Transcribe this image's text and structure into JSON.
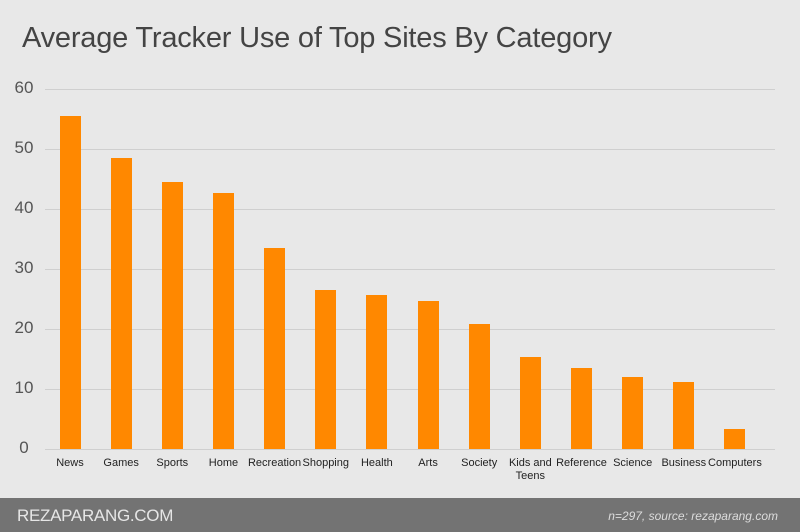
{
  "chart_data": {
    "type": "bar",
    "title": "Average Tracker Use of Top Sites By Category",
    "xlabel": "",
    "ylabel": "",
    "ylim": [
      0,
      60
    ],
    "yticks": [
      0,
      10,
      20,
      30,
      40,
      50,
      60
    ],
    "grid": true,
    "legend": null,
    "bar_color": "#ff8800",
    "categories": [
      "News",
      "Games",
      "Sports",
      "Home",
      "Recreation",
      "Shopping",
      "Health",
      "Arts",
      "Society",
      "Kids and Teens",
      "Reference",
      "Science",
      "Business",
      "Computers"
    ],
    "values": [
      55.5,
      48.5,
      44.5,
      42.7,
      33.5,
      26.5,
      25.7,
      24.7,
      20.8,
      15.3,
      13.5,
      12.0,
      11.2,
      3.3
    ]
  },
  "footer": {
    "brand": "REZAPARANG.COM",
    "source": "n=297, source: rezaparang.com"
  }
}
